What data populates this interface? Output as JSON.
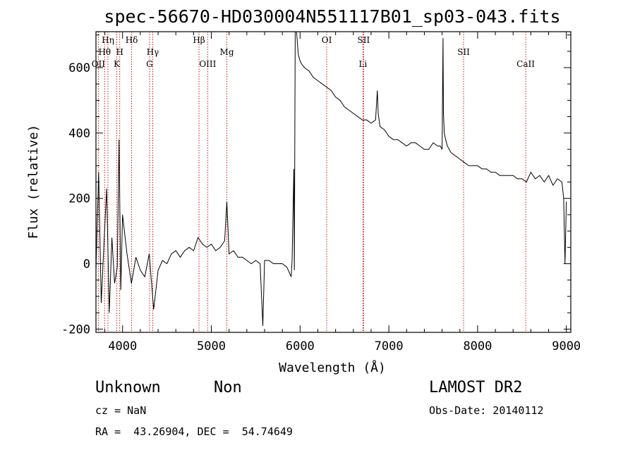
{
  "chart_data": {
    "type": "line",
    "title": "spec-56670-HD030004N551117B01_sp03-043.fits",
    "xlabel": "Wavelength (Å)",
    "ylabel": "Flux (relative)",
    "xlim": [
      3700,
      9050
    ],
    "ylim": [
      -210,
      710
    ],
    "x_ticks": [
      4000,
      5000,
      6000,
      7000,
      8000,
      9000
    ],
    "y_ticks": [
      -200,
      0,
      200,
      400,
      600
    ],
    "spectral_lines": [
      {
        "label": "OII",
        "wavelength": 3727,
        "row": 3
      },
      {
        "label": "Hθ",
        "wavelength": 3798,
        "row": 2
      },
      {
        "label": "Hη",
        "wavelength": 3835,
        "row": 1
      },
      {
        "label": "K",
        "wavelength": 3934,
        "row": 3
      },
      {
        "label": "H",
        "wavelength": 3968,
        "row": 2
      },
      {
        "label": "Hδ",
        "wavelength": 4102,
        "row": 1
      },
      {
        "label": "G",
        "wavelength": 4304,
        "row": 3
      },
      {
        "label": "Hγ",
        "wavelength": 4340,
        "row": 2
      },
      {
        "label": "Hβ",
        "wavelength": 4861,
        "row": 1
      },
      {
        "label": "OIII",
        "wavelength": 4959,
        "row": 3
      },
      {
        "label": "Mg",
        "wavelength": 5175,
        "row": 2
      },
      {
        "label": "OI",
        "wavelength": 6300,
        "row": 1
      },
      {
        "label": "SII",
        "wavelength": 6716,
        "row": 1
      },
      {
        "label": "Li",
        "wavelength": 6708,
        "row": 3
      },
      {
        "label": "SII",
        "wavelength": 7842,
        "row": 2
      },
      {
        "label": "CaII",
        "wavelength": 8542,
        "row": 3
      }
    ],
    "series": [
      {
        "x": [
          3700,
          3730,
          3760,
          3790,
          3820,
          3850,
          3880,
          3910,
          3940,
          3960,
          3980,
          4000,
          4050,
          4100,
          4150,
          4200,
          4250,
          4300,
          4350,
          4400,
          4450,
          4500,
          4550,
          4600,
          4650,
          4700,
          4750,
          4800,
          4850,
          4900,
          4950,
          5000,
          5050,
          5100,
          5150,
          5175,
          5200,
          5250,
          5300,
          5350,
          5400,
          5450,
          5500,
          5550,
          5580,
          5600,
          5650,
          5700,
          5750,
          5800,
          5850,
          5900,
          5910,
          5930,
          5935,
          5945,
          5960,
          5980,
          6000,
          6020,
          6050,
          6100,
          6150,
          6200,
          6250,
          6300,
          6350,
          6400,
          6450,
          6500,
          6550,
          6600,
          6650,
          6700,
          6750,
          6800,
          6850,
          6870,
          6880,
          6900,
          6950,
          7000,
          7050,
          7100,
          7150,
          7200,
          7250,
          7300,
          7350,
          7400,
          7450,
          7500,
          7550,
          7580,
          7600,
          7610,
          7615,
          7625,
          7640,
          7660,
          7700,
          7750,
          7800,
          7850,
          7900,
          7950,
          8000,
          8050,
          8100,
          8150,
          8200,
          8250,
          8300,
          8350,
          8400,
          8450,
          8500,
          8550,
          8600,
          8650,
          8700,
          8750,
          8800,
          8850,
          8900,
          8950,
          8970,
          8985,
          9000
        ],
        "y": [
          -20,
          280,
          -120,
          60,
          230,
          -150,
          80,
          -60,
          -10,
          380,
          -80,
          150,
          30,
          -60,
          20,
          -20,
          -40,
          30,
          -140,
          -20,
          10,
          0,
          30,
          40,
          20,
          40,
          50,
          40,
          80,
          60,
          50,
          60,
          40,
          50,
          70,
          190,
          30,
          40,
          20,
          20,
          10,
          0,
          10,
          0,
          -190,
          10,
          10,
          0,
          0,
          0,
          -10,
          -40,
          10,
          290,
          -20,
          750,
          720,
          640,
          620,
          610,
          600,
          590,
          570,
          560,
          550,
          540,
          530,
          510,
          500,
          480,
          470,
          460,
          450,
          440,
          440,
          430,
          440,
          530,
          460,
          420,
          410,
          390,
          380,
          380,
          370,
          360,
          370,
          370,
          360,
          350,
          350,
          370,
          360,
          360,
          350,
          690,
          460,
          400,
          380,
          360,
          340,
          330,
          320,
          310,
          300,
          300,
          300,
          290,
          290,
          280,
          280,
          270,
          270,
          270,
          270,
          260,
          260,
          250,
          280,
          260,
          270,
          250,
          270,
          240,
          260,
          250,
          200,
          0,
          190
        ]
      }
    ]
  },
  "footer": {
    "object_name": "Unknown",
    "object_class": "Non",
    "survey": "LAMOST DR2",
    "cz": "cz = NaN",
    "obs_date": "Obs-Date: 20140112",
    "coords": "RA =  43.26904, DEC =  54.74649"
  }
}
